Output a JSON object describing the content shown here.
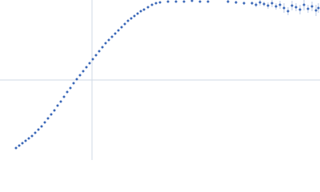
{
  "chart_data": {
    "type": "scatter",
    "color": "#3b68b8",
    "xlim": [
      0,
      400
    ],
    "ylim": [
      0,
      200
    ],
    "x": [
      20,
      24,
      28,
      32,
      36,
      40,
      44,
      48,
      52,
      56,
      60,
      64,
      68,
      72,
      76,
      80,
      84,
      88,
      92,
      96,
      100,
      104,
      108,
      112,
      116,
      120,
      124,
      128,
      132,
      136,
      140,
      144,
      148,
      152,
      156,
      160,
      164,
      168,
      172,
      176,
      180,
      185,
      190,
      195,
      200,
      210,
      220,
      230,
      240,
      250,
      260,
      285,
      295,
      305,
      315,
      320,
      325,
      330,
      335,
      340,
      345,
      350,
      355,
      360,
      365,
      370,
      375,
      380,
      385,
      390,
      395,
      398
    ],
    "values": [
      15,
      18,
      21,
      24,
      27,
      30,
      34,
      38,
      42,
      47,
      52,
      57,
      62,
      68,
      73,
      79,
      85,
      90,
      96,
      101,
      106,
      111,
      116,
      121,
      126,
      131,
      136,
      141,
      146,
      150,
      154,
      158,
      162,
      166,
      170,
      174,
      177,
      180,
      183,
      186,
      188,
      191,
      194,
      196,
      197,
      198,
      198,
      198,
      199,
      198,
      198,
      198,
      197,
      196,
      196,
      194,
      197,
      195,
      193,
      196,
      192,
      194,
      190,
      186,
      193,
      191,
      188,
      194,
      189,
      192,
      187,
      190
    ],
    "errors": [
      1,
      1,
      1,
      1,
      1,
      1,
      1,
      1,
      1,
      1,
      1,
      1,
      1,
      1,
      1,
      1,
      1,
      1,
      1,
      1,
      1,
      1,
      1,
      1,
      1,
      1,
      1,
      1,
      1,
      1,
      1,
      1,
      1,
      1,
      1,
      1,
      1,
      1,
      1,
      1,
      1,
      1,
      1,
      1,
      1,
      1,
      1,
      1,
      1,
      1,
      1,
      2,
      2,
      2,
      2,
      3,
      4,
      3,
      4,
      5,
      4,
      5,
      6,
      5,
      6,
      5,
      6,
      7,
      5,
      6,
      7,
      6
    ]
  }
}
